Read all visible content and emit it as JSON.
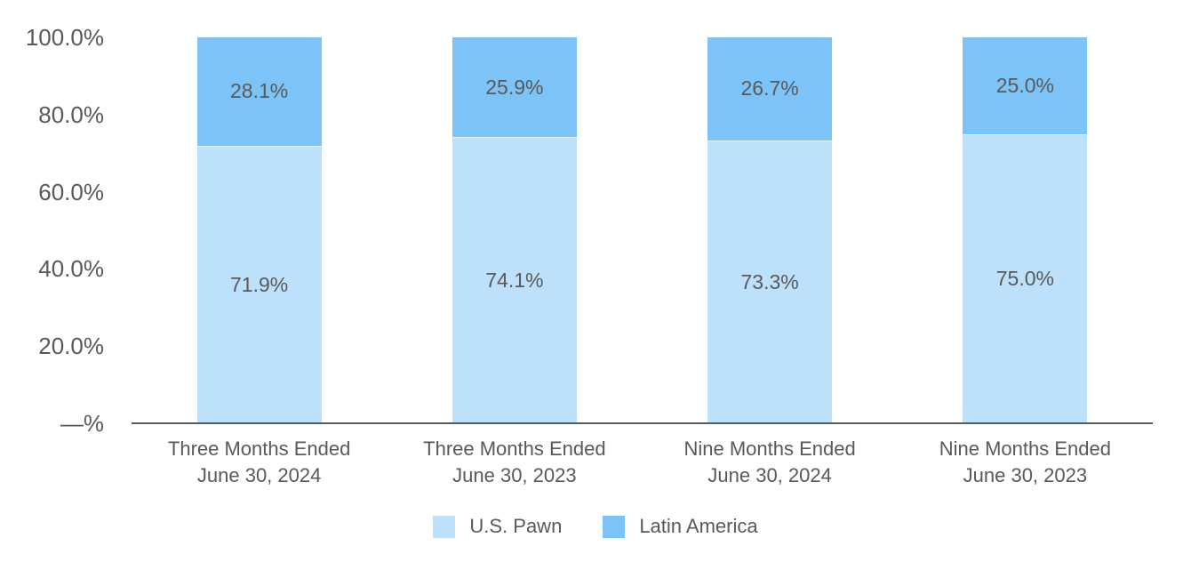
{
  "chart_data": {
    "type": "bar",
    "stacked": true,
    "orientation": "vertical",
    "title": "",
    "xlabel": "",
    "ylabel": "",
    "grid": false,
    "legend_position": "bottom",
    "text_color": "#595959",
    "axis_color": "#595959",
    "background_color": "#ffffff",
    "categories": [
      "Three Months Ended\nJune 30, 2024",
      "Three Months Ended\nJune 30, 2023",
      "Nine Months Ended\nJune 30, 2024",
      "Nine Months Ended\nJune 30, 2023"
    ],
    "series": [
      {
        "name": "U.S. Pawn",
        "color": "#BEE1FB",
        "values": [
          71.9,
          74.1,
          73.3,
          75.0
        ],
        "labels": [
          "71.9%",
          "74.1%",
          "73.3%",
          "75.0%"
        ]
      },
      {
        "name": "Latin America",
        "color": "#7CC4F7",
        "values": [
          28.1,
          25.9,
          26.7,
          25.0
        ],
        "labels": [
          "28.1%",
          "25.9%",
          "26.7%",
          "25.0%"
        ]
      }
    ],
    "y_axis": {
      "max": 100,
      "ticks": [
        {
          "label": "—%",
          "value": 0
        },
        {
          "label": "20.0%",
          "value": 20
        },
        {
          "label": "40.0%",
          "value": 40
        },
        {
          "label": "60.0%",
          "value": 60
        },
        {
          "label": "80.0%",
          "value": 80
        },
        {
          "label": "100.0%",
          "value": 100
        }
      ]
    }
  }
}
